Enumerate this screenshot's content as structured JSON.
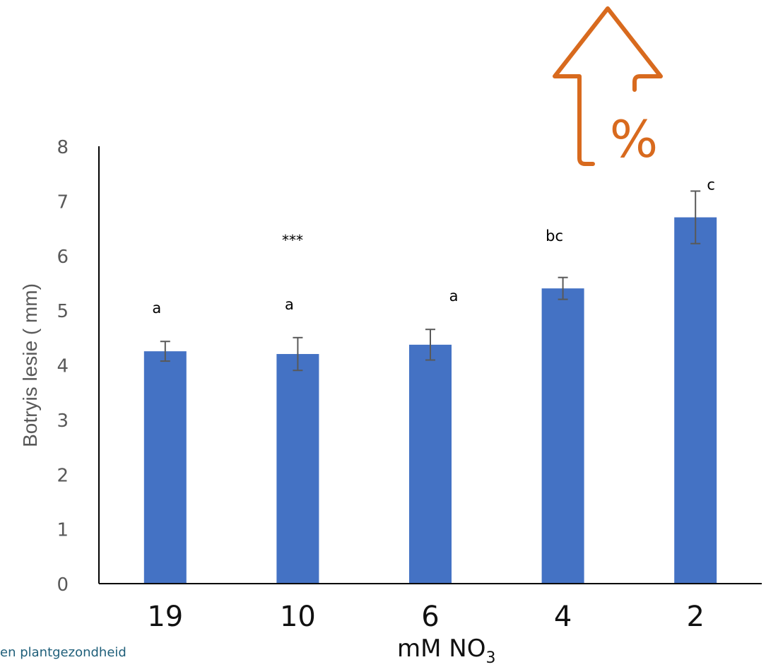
{
  "chart_data": {
    "type": "bar",
    "categories": [
      "19",
      "10",
      "6",
      "4",
      "2"
    ],
    "values": [
      4.25,
      4.2,
      4.37,
      5.4,
      6.7
    ],
    "error_bars": [
      0.18,
      0.3,
      0.28,
      0.2,
      0.48
    ],
    "significance_letters": [
      "a",
      "a",
      "a",
      "bc",
      "c"
    ],
    "annotation": "***",
    "ylabel": "Botryis lesie ( mm)",
    "xlabel": "mM NO",
    "xlabel_subscript": "3",
    "ylim": [
      0,
      8
    ],
    "yticks": [
      "0",
      "1",
      "2",
      "3",
      "4",
      "5",
      "6",
      "7",
      "8"
    ],
    "grid": false,
    "bar_color": "#4472c4",
    "error_bar_color": "#595959"
  },
  "decoration": {
    "arrow_icon": "percent-up-arrow-icon",
    "arrow_color": "#d86a1e",
    "symbol": "%"
  },
  "footer": {
    "text": "en plantgezondheid"
  }
}
